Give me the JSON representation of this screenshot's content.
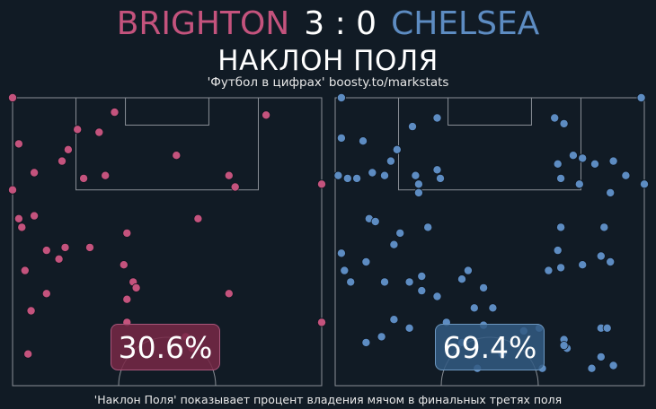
{
  "header": {
    "home_team": "BRIGHTON",
    "score": "3 : 0",
    "away_team": "CHELSEA",
    "subtitle": "НАКЛОН ПОЛЯ",
    "credit": "'Футбол в цифрах' boosty.to/markstats"
  },
  "footer": "'Наклон Поля' показывает процент владения мячом в финальных третях поля",
  "colors": {
    "home": "#c4537d",
    "away": "#5d8cc2",
    "background": "#111b25",
    "lines": "#8a8f96"
  },
  "chart_data": [
    {
      "type": "scatter",
      "team": "BRIGHTON",
      "share_label": "30.6%",
      "share_value": 30.6,
      "xlim": [
        0,
        100
      ],
      "ylim": [
        0,
        100
      ],
      "x_direction": "left to right",
      "y_direction": "toward goal (top)",
      "points": [
        [
          0,
          100
        ],
        [
          33,
          95
        ],
        [
          82,
          94
        ],
        [
          21,
          89
        ],
        [
          28,
          88
        ],
        [
          2,
          84
        ],
        [
          18,
          82
        ],
        [
          53,
          80
        ],
        [
          16,
          78
        ],
        [
          30,
          73
        ],
        [
          7,
          74
        ],
        [
          70,
          73
        ],
        [
          23,
          72
        ],
        [
          72,
          69
        ],
        [
          0,
          68
        ],
        [
          100,
          70
        ],
        [
          2,
          58
        ],
        [
          7,
          59
        ],
        [
          3,
          55
        ],
        [
          37,
          53
        ],
        [
          60,
          58
        ],
        [
          17,
          48
        ],
        [
          11,
          47
        ],
        [
          15,
          44
        ],
        [
          25,
          48
        ],
        [
          36,
          42
        ],
        [
          4,
          40
        ],
        [
          39,
          36
        ],
        [
          40,
          34
        ],
        [
          11,
          32
        ],
        [
          37,
          30
        ],
        [
          70,
          32
        ],
        [
          6,
          26
        ],
        [
          37,
          22
        ],
        [
          56,
          17
        ],
        [
          58,
          13
        ],
        [
          5,
          11
        ],
        [
          100,
          22
        ]
      ]
    },
    {
      "type": "scatter",
      "team": "CHELSEA",
      "share_label": "69.4%",
      "share_value": 69.4,
      "xlim": [
        0,
        100
      ],
      "ylim": [
        0,
        100
      ],
      "x_direction": "left to right",
      "y_direction": "toward goal (top)",
      "points": [
        [
          2,
          100
        ],
        [
          33,
          93
        ],
        [
          71,
          93
        ],
        [
          99,
          100
        ],
        [
          25,
          90
        ],
        [
          74,
          91
        ],
        [
          2,
          86
        ],
        [
          9,
          85
        ],
        [
          20,
          82
        ],
        [
          18,
          78
        ],
        [
          77,
          80
        ],
        [
          80,
          79
        ],
        [
          72,
          77
        ],
        [
          90,
          78
        ],
        [
          84,
          77
        ],
        [
          16,
          73
        ],
        [
          94,
          73
        ],
        [
          33,
          75
        ],
        [
          1,
          73
        ],
        [
          26,
          73
        ],
        [
          34,
          72
        ],
        [
          27,
          70
        ],
        [
          73,
          72
        ],
        [
          79,
          70
        ],
        [
          12,
          74
        ],
        [
          27,
          67
        ],
        [
          89,
          67
        ],
        [
          100,
          70
        ],
        [
          4,
          72
        ],
        [
          7,
          72
        ],
        [
          11,
          58
        ],
        [
          13,
          57
        ],
        [
          30,
          55
        ],
        [
          21,
          53
        ],
        [
          19,
          49
        ],
        [
          73,
          55
        ],
        [
          87,
          55
        ],
        [
          72,
          47
        ],
        [
          86,
          45
        ],
        [
          2,
          46
        ],
        [
          10,
          43
        ],
        [
          73,
          41
        ],
        [
          80,
          42
        ],
        [
          89,
          43
        ],
        [
          69,
          40
        ],
        [
          28,
          38
        ],
        [
          43,
          40
        ],
        [
          3,
          40
        ],
        [
          5,
          36
        ],
        [
          16,
          36
        ],
        [
          24,
          36
        ],
        [
          41,
          37
        ],
        [
          48,
          34
        ],
        [
          28,
          33
        ],
        [
          33,
          31
        ],
        [
          45,
          27
        ],
        [
          51,
          27
        ],
        [
          19,
          23
        ],
        [
          24,
          20
        ],
        [
          36,
          22
        ],
        [
          48,
          21
        ],
        [
          66,
          20
        ],
        [
          86,
          20
        ],
        [
          88,
          20
        ],
        [
          61,
          19
        ],
        [
          74,
          16
        ],
        [
          75,
          13
        ],
        [
          15,
          17
        ],
        [
          10,
          15
        ],
        [
          41,
          15
        ],
        [
          54,
          11
        ],
        [
          74,
          14
        ],
        [
          86,
          10
        ],
        [
          90,
          7
        ],
        [
          46,
          6
        ],
        [
          67,
          6
        ],
        [
          83,
          6
        ]
      ]
    }
  ]
}
